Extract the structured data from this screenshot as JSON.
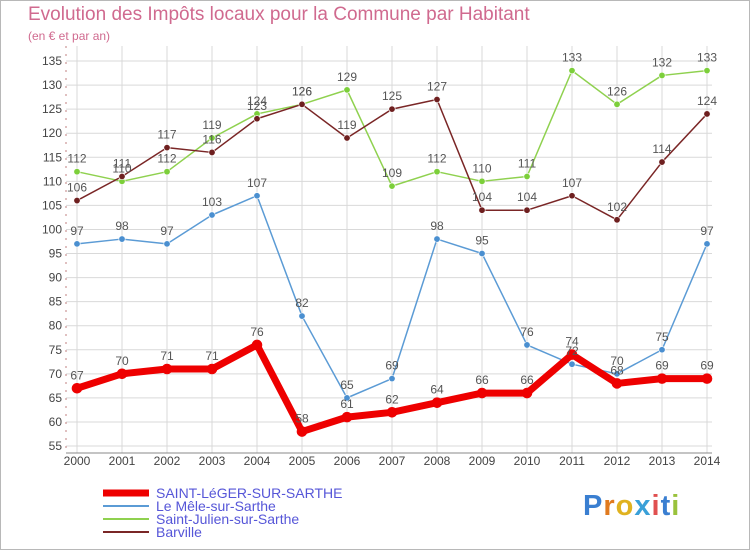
{
  "title": "Evolution des Impôts locaux pour la Commune par Habitant",
  "subtitle": "(en € et par an)",
  "logo": {
    "letters": [
      "P",
      "r",
      "o",
      "x",
      "i",
      "t",
      "i"
    ],
    "colors": [
      "#3a7fd1",
      "#e07a1f",
      "#e0b21f",
      "#3aa0d8",
      "#e05050",
      "#3a7fd1",
      "#9ac23c"
    ]
  },
  "chart_data": {
    "type": "line",
    "title": "Evolution des Impôts locaux pour la Commune par Habitant",
    "ylabel": "(en € et par an)",
    "xlabel": "",
    "categories": [
      "2000",
      "2001",
      "2002",
      "2003",
      "2004",
      "2005",
      "2006",
      "2007",
      "2008",
      "2009",
      "2010",
      "2011",
      "2012",
      "2013",
      "2014"
    ],
    "ylim": [
      53,
      137
    ],
    "yticks": [
      55,
      60,
      65,
      70,
      75,
      80,
      85,
      90,
      95,
      100,
      105,
      110,
      115,
      120,
      125,
      130,
      135
    ],
    "grid": true,
    "legend": "bottom-left",
    "series": [
      {
        "name": "Saint-Julien-sur-Sarthe",
        "color": "#8fd14f",
        "dot": "#7ccf3a",
        "width": 1.5,
        "values": [
          112,
          110,
          112,
          119,
          124,
          126,
          129,
          109,
          112,
          110,
          111,
          133,
          126,
          132,
          133
        ]
      },
      {
        "name": "Barville",
        "color": "#7a2626",
        "dot": "#6e1f1f",
        "width": 1.5,
        "values": [
          106,
          111,
          117,
          116,
          123,
          126,
          119,
          125,
          127,
          104,
          104,
          107,
          102,
          114,
          124
        ]
      },
      {
        "name": "Le Mêle-sur-Sarthe",
        "color": "#5b9bd5",
        "dot": "#4a8fd0",
        "width": 1.5,
        "values": [
          97,
          98,
          97,
          103,
          107,
          82,
          65,
          69,
          98,
          95,
          76,
          72,
          70,
          75,
          97
        ]
      },
      {
        "name": "SAINT-LéGER-SUR-SARTHE",
        "color": "#ee0000",
        "dot": "#ee0000",
        "width": 7,
        "values": [
          67,
          70,
          71,
          71,
          76,
          58,
          61,
          62,
          64,
          66,
          66,
          74,
          68,
          69,
          69
        ]
      }
    ],
    "legend_order": [
      "SAINT-LéGER-SUR-SARTHE",
      "Le Mêle-sur-Sarthe",
      "Saint-Julien-sur-Sarthe",
      "Barville"
    ]
  }
}
